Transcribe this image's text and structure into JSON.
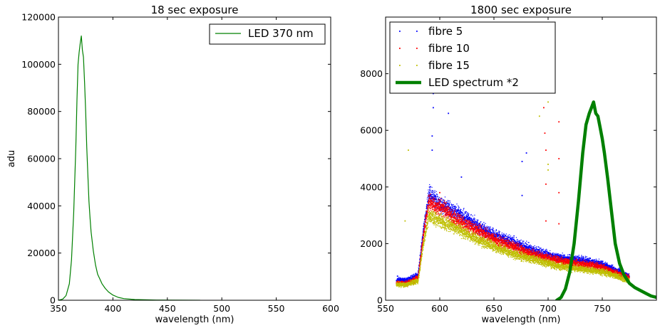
{
  "chart_data": [
    {
      "type": "line",
      "title": "18 sec exposure",
      "xlabel": "wavelength (nm)",
      "ylabel": "adu",
      "xlim": [
        350,
        600
      ],
      "ylim": [
        0,
        120000
      ],
      "xticks": [
        "350",
        "400",
        "450",
        "500",
        "550",
        "600"
      ],
      "yticks": [
        "0",
        "20000",
        "40000",
        "60000",
        "80000",
        "100000",
        "120000"
      ],
      "grid": false,
      "legend_position": "top-right",
      "series": [
        {
          "name": "LED 370 nm",
          "color": "#008000",
          "x": [
            350,
            354,
            357,
            360,
            362,
            364,
            366,
            367,
            368,
            369,
            370,
            371,
            372,
            373,
            374,
            375,
            376,
            377,
            378,
            379,
            380,
            382,
            384,
            386,
            388,
            390,
            393,
            396,
            400,
            405,
            410,
            420,
            440,
            480
          ],
          "y": [
            0,
            500,
            2000,
            7000,
            17000,
            37000,
            65000,
            85000,
            100000,
            105000,
            109000,
            112000,
            106000,
            103000,
            92000,
            80000,
            65000,
            53000,
            42000,
            35000,
            29000,
            21000,
            15000,
            11000,
            9000,
            7000,
            5000,
            3500,
            2200,
            1200,
            700,
            300,
            100,
            0
          ]
        }
      ]
    },
    {
      "type": "scatter",
      "title": "1800 sec exposure",
      "xlabel": "wavelength (nm)",
      "ylabel": "",
      "xlim": [
        550,
        800
      ],
      "ylim": [
        0,
        10000
      ],
      "xticks": [
        "550",
        "600",
        "650",
        "700",
        "750"
      ],
      "yticks": [
        "0",
        "2000",
        "4000",
        "6000",
        "8000"
      ],
      "grid": false,
      "legend_position": "top-left",
      "series": [
        {
          "name": "fibre 5",
          "color": "#0000ff",
          "marker": "dot",
          "x": [
            560,
            570,
            580,
            585,
            590,
            595,
            600,
            605,
            610,
            620,
            630,
            640,
            650,
            660,
            670,
            680,
            690,
            700,
            710,
            720,
            730,
            740,
            750,
            760,
            770,
            775
          ],
          "y": [
            700,
            700,
            900,
            2500,
            3700,
            3600,
            3400,
            3300,
            3200,
            3000,
            2750,
            2500,
            2300,
            2150,
            2000,
            1850,
            1700,
            1600,
            1500,
            1450,
            1400,
            1350,
            1250,
            1100,
            900,
            850
          ]
        },
        {
          "name": "fibre 10",
          "color": "#ff0000",
          "marker": "dot",
          "x": [
            560,
            570,
            580,
            585,
            590,
            595,
            600,
            605,
            610,
            620,
            630,
            640,
            650,
            660,
            670,
            680,
            690,
            700,
            710,
            720,
            730,
            740,
            750,
            760,
            770,
            775
          ],
          "y": [
            600,
            600,
            800,
            2300,
            3500,
            3300,
            3300,
            3200,
            3000,
            2750,
            2550,
            2350,
            2150,
            2000,
            1850,
            1700,
            1580,
            1480,
            1400,
            1330,
            1280,
            1250,
            1150,
            1000,
            850,
            800
          ]
        },
        {
          "name": "fibre 15",
          "color": "#bfbf00",
          "marker": "dot",
          "x": [
            560,
            570,
            580,
            585,
            590,
            595,
            600,
            605,
            610,
            620,
            630,
            640,
            650,
            660,
            670,
            680,
            690,
            700,
            710,
            720,
            730,
            740,
            750,
            760,
            770,
            775
          ],
          "y": [
            550,
            550,
            700,
            2000,
            3000,
            2900,
            2800,
            2700,
            2650,
            2450,
            2250,
            2050,
            1900,
            1750,
            1600,
            1500,
            1400,
            1300,
            1200,
            1150,
            1100,
            1050,
            1000,
            900,
            750,
            700
          ]
        },
        {
          "name": "LED spectrum *2",
          "color": "#008000",
          "marker": "thick-line",
          "x": [
            708,
            712,
            716,
            720,
            724,
            728,
            732,
            735,
            738,
            740,
            742,
            744,
            746,
            748,
            750,
            752,
            755,
            758,
            762,
            766,
            770,
            775,
            780,
            785,
            790,
            795,
            800
          ],
          "y": [
            0,
            100,
            400,
            1000,
            2000,
            3500,
            5200,
            6200,
            6600,
            6800,
            7000,
            6600,
            6500,
            6100,
            5700,
            5200,
            4300,
            3300,
            2000,
            1300,
            900,
            600,
            450,
            350,
            250,
            150,
            100
          ]
        }
      ],
      "outliers": [
        {
          "series": 0,
          "x": 561,
          "y": 850
        },
        {
          "series": 0,
          "x": 593,
          "y": 5300
        },
        {
          "series": 0,
          "x": 593,
          "y": 5800
        },
        {
          "series": 0,
          "x": 594,
          "y": 6800
        },
        {
          "series": 0,
          "x": 594,
          "y": 7300
        },
        {
          "series": 0,
          "x": 608,
          "y": 6600
        },
        {
          "series": 0,
          "x": 620,
          "y": 4350
        },
        {
          "series": 0,
          "x": 676,
          "y": 4900
        },
        {
          "series": 0,
          "x": 676,
          "y": 3700
        },
        {
          "series": 0,
          "x": 680,
          "y": 5200
        },
        {
          "series": 1,
          "x": 696,
          "y": 6800
        },
        {
          "series": 1,
          "x": 697,
          "y": 7700
        },
        {
          "series": 1,
          "x": 697,
          "y": 5900
        },
        {
          "series": 1,
          "x": 698,
          "y": 5300
        },
        {
          "series": 1,
          "x": 698,
          "y": 4100
        },
        {
          "series": 1,
          "x": 698,
          "y": 2800
        },
        {
          "series": 1,
          "x": 710,
          "y": 6300
        },
        {
          "series": 1,
          "x": 710,
          "y": 5000
        },
        {
          "series": 1,
          "x": 710,
          "y": 3800
        },
        {
          "series": 1,
          "x": 710,
          "y": 2700
        },
        {
          "series": 1,
          "x": 600,
          "y": 3800
        },
        {
          "series": 2,
          "x": 571,
          "y": 5300
        },
        {
          "series": 2,
          "x": 690,
          "y": 8500
        },
        {
          "series": 2,
          "x": 692,
          "y": 6500
        },
        {
          "series": 2,
          "x": 700,
          "y": 7000
        },
        {
          "series": 2,
          "x": 700,
          "y": 4800
        },
        {
          "series": 2,
          "x": 700,
          "y": 4600
        },
        {
          "series": 2,
          "x": 568,
          "y": 2800
        }
      ]
    }
  ]
}
